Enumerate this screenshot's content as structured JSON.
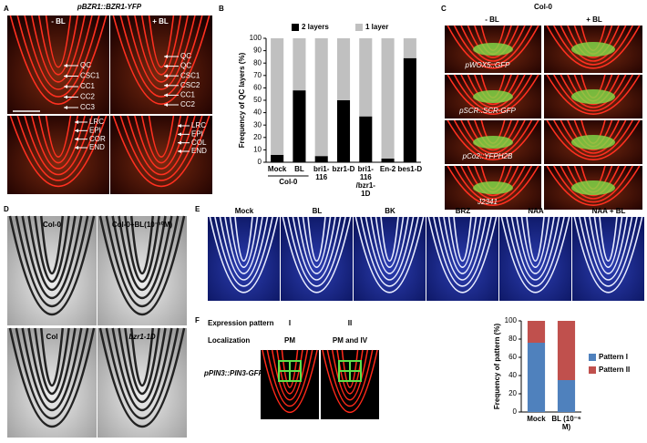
{
  "panel_a": {
    "label": "A",
    "title": "pBZR1::BZR1-YFP",
    "minus": "- BL",
    "plus": "+ BL",
    "top_left": [
      "QC",
      "CSC1",
      "CC1",
      "CC2",
      "CC3"
    ],
    "top_right": [
      "QC",
      "QC",
      "CSC1",
      "CSC2",
      "CC1",
      "CC2"
    ],
    "bottom_left": [
      "LRC",
      "EPI",
      "COR",
      "END"
    ],
    "bottom_right": [
      "LRC",
      "EPI",
      "COL",
      "END"
    ]
  },
  "panel_c": {
    "label": "C",
    "title": "Col-0",
    "minus": "- BL",
    "plus": "+ BL",
    "markers": [
      "pWOX5::GFP",
      "pSCR::SCR-GFP",
      "pCo2::YFPH2B",
      "J2341"
    ]
  },
  "panel_d": {
    "label": "D",
    "images": [
      "Col-0",
      "Col-0+BL(10⁻¹⁰M)",
      "Col",
      "bzr1-1D"
    ]
  },
  "panel_e": {
    "label": "E",
    "images": [
      "Mock",
      "BL",
      "BK",
      "BRZ",
      "NAA",
      "NAA + BL"
    ]
  },
  "panel_f": {
    "label": "F",
    "row_labels": [
      "Expression pattern",
      "Localization"
    ],
    "patterns": [
      "I",
      "II"
    ],
    "localization": [
      "PM",
      "PM and IV"
    ],
    "construct": "pPIN3::PIN3-GFP"
  },
  "chart_data": [
    {
      "type": "bar",
      "panel_label": "B",
      "ylabel": "Frequency of QC layers (%)",
      "categories": [
        "Mock",
        "BL",
        "bri1-116",
        "bzr1-D",
        "bri1-116 /bzr1-1D",
        "En-2",
        "bes1-D"
      ],
      "category_group": "Col-0",
      "series": [
        {
          "name": "2 layers",
          "color": "#000000",
          "values": [
            6,
            58,
            5,
            50,
            37,
            3,
            84
          ]
        },
        {
          "name": "1 layer",
          "color": "#c0c0c0",
          "values": [
            94,
            42,
            95,
            50,
            63,
            97,
            16
          ]
        }
      ],
      "ylim": [
        0,
        100
      ],
      "yticks": [
        0,
        10,
        20,
        30,
        40,
        50,
        60,
        70,
        80,
        90,
        100
      ],
      "legend": "top"
    },
    {
      "type": "bar",
      "ylabel": "Frequency of pattern (%)",
      "categories": [
        "Mock",
        "BL (10⁻⁶ M)"
      ],
      "series": [
        {
          "name": "Pattern I",
          "color": "#4f81bd",
          "values": [
            76,
            35
          ]
        },
        {
          "name": "Pattern II",
          "color": "#c0504d",
          "values": [
            24,
            65
          ]
        }
      ],
      "ylim": [
        0,
        100
      ],
      "yticks": [
        0,
        20,
        40,
        60,
        80,
        100
      ],
      "legend": "right"
    }
  ]
}
